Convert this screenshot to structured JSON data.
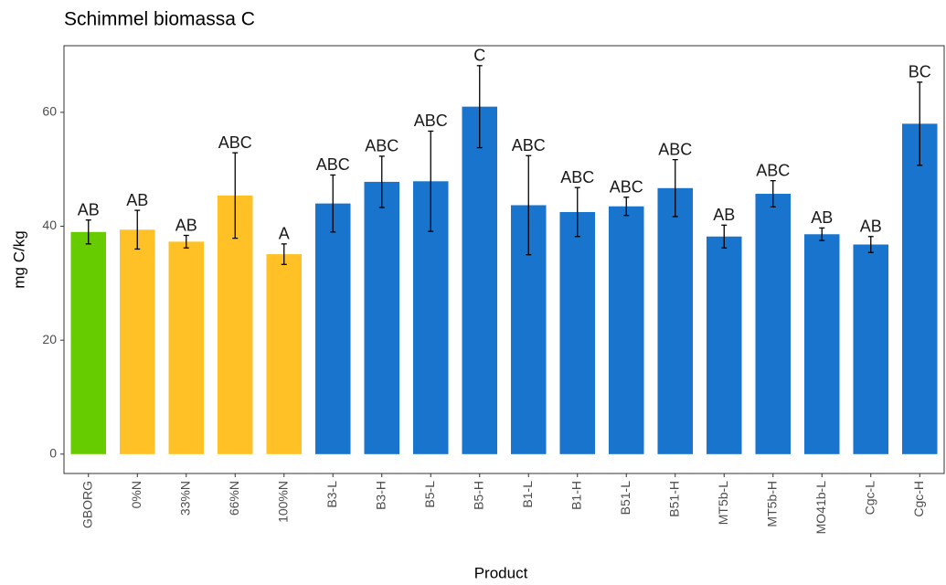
{
  "chart_data": {
    "type": "bar",
    "title": "Schimmel biomassa C",
    "x_label": "Product",
    "y_label": "mg C/kg",
    "categories": [
      "GBORG",
      "0%N",
      "33%N",
      "66%N",
      "100%N",
      "B3-L",
      "B3-H",
      "B5-L",
      "B5-H",
      "B1-L",
      "B1-H",
      "B51-L",
      "B51-H",
      "MT5b-L",
      "MT5b-H",
      "MO41b-L",
      "Cgc-L",
      "Cgc-H"
    ],
    "values": [
      39,
      39.4,
      37.3,
      45.4,
      35.1,
      44.0,
      47.8,
      47.9,
      61.0,
      43.7,
      42.5,
      43.5,
      46.7,
      38.2,
      45.7,
      38.6,
      36.8,
      58.0
    ],
    "errors": [
      2.1,
      3.4,
      1.1,
      7.5,
      1.8,
      5.0,
      4.5,
      8.8,
      7.2,
      8.7,
      4.3,
      1.6,
      5.0,
      2.0,
      2.3,
      1.1,
      1.4,
      7.3
    ],
    "letters": [
      "AB",
      "AB",
      "AB",
      "ABC",
      "A",
      "ABC",
      "ABC",
      "ABC",
      "C",
      "ABC",
      "ABC",
      "ABC",
      "ABC",
      "AB",
      "ABC",
      "AB",
      "AB",
      "BC"
    ],
    "colors": [
      "#66cc00",
      "#ffc125",
      "#ffc125",
      "#ffc125",
      "#ffc125",
      "#1874cd",
      "#1874cd",
      "#1874cd",
      "#1874cd",
      "#1874cd",
      "#1874cd",
      "#1874cd",
      "#1874cd",
      "#1874cd",
      "#1874cd",
      "#1874cd",
      "#1874cd",
      "#1874cd"
    ],
    "ylim": [
      -3.4,
      71.7
    ],
    "yticks": [
      0,
      20,
      40,
      60
    ],
    "grid": false
  }
}
